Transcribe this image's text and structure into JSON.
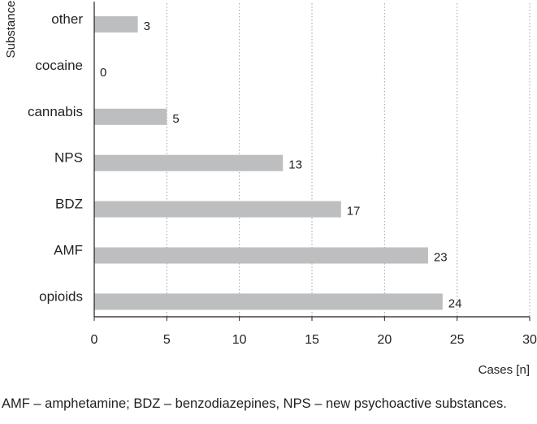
{
  "chart_data": {
    "type": "bar",
    "orientation": "horizontal",
    "categories": [
      "other",
      "cocaine",
      "cannabis",
      "NPS",
      "BDZ",
      "AMF",
      "opioids"
    ],
    "values": [
      3,
      0,
      5,
      13,
      17,
      23,
      24
    ],
    "xlabel": "Cases [n]",
    "ylabel": "Substance",
    "xlim": [
      0,
      30
    ],
    "xticks": [
      0,
      5,
      10,
      15,
      20,
      25,
      30
    ],
    "grid": "vertical dotted",
    "bar_color": "#bcbec0",
    "axis_color": "#231f20",
    "grid_color": "#9d9fa2"
  },
  "footnote": "AMF – amphetamine; BDZ – benzodiazepines, NPS – new psychoactive substances."
}
